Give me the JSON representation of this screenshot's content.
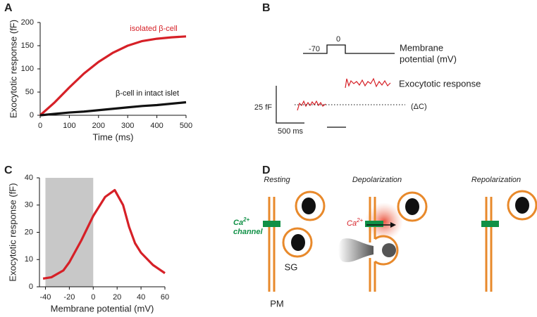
{
  "chart_data": [
    {
      "type": "line",
      "panel_label": "A",
      "xlabel": "Time (ms)",
      "ylabel": "Exocytotic response (fF)",
      "x": [
        0,
        50,
        100,
        150,
        200,
        250,
        300,
        350,
        400,
        450,
        500
      ],
      "series": [
        {
          "name": "isolated β-cell",
          "color": "#d62027",
          "values": [
            0,
            28,
            60,
            90,
            115,
            135,
            150,
            160,
            165,
            168,
            170
          ]
        },
        {
          "name": "β-cell in intact islet",
          "color": "#111111",
          "values": [
            0,
            3,
            6,
            8,
            11,
            14,
            17,
            20,
            22,
            25,
            28
          ]
        }
      ],
      "xlim": [
        0,
        500
      ],
      "xticks": [
        0,
        100,
        200,
        300,
        400,
        500
      ],
      "ylim": [
        0,
        200
      ],
      "yticks": [
        0,
        50,
        100,
        150,
        200
      ]
    },
    {
      "type": "line",
      "panel_label": "C",
      "xlabel": "Membrane potential (mV)",
      "ylabel": "Exocytotic response (fF)",
      "x": [
        -42,
        -35,
        -25,
        -20,
        -10,
        0,
        10,
        18,
        25,
        30,
        35,
        40,
        50,
        60
      ],
      "series": [
        {
          "color": "#d62027",
          "values": [
            3,
            3.5,
            6,
            9,
            17,
            26,
            33,
            35.5,
            30,
            22,
            16,
            12.5,
            8,
            5
          ]
        }
      ],
      "shaded_range": [
        -40,
        0
      ],
      "shade_color": "#c8c8c8",
      "xlim": [
        -45,
        60
      ],
      "xticks": [
        -40,
        -20,
        0,
        20,
        40,
        60
      ],
      "ylim": [
        0,
        40
      ],
      "yticks": [
        0,
        10,
        20,
        30,
        40
      ]
    }
  ],
  "panel_b": {
    "label": "B",
    "v_low": "-70",
    "v_high": "0",
    "potential_line1": "Membrane",
    "potential_line2": "potential (mV)",
    "response_label": "Exocytotic response",
    "scale_y": "25 fF",
    "delta_c": "(ΔC)",
    "scale_x": "500 ms"
  },
  "panel_d": {
    "label": "D",
    "resting": "Resting",
    "depolarization": "Depolarization",
    "repolarization": "Repolarization",
    "ca": "Ca",
    "ca_sup": "2+",
    "channel": "channel",
    "sg": "SG",
    "pm": "PM"
  }
}
